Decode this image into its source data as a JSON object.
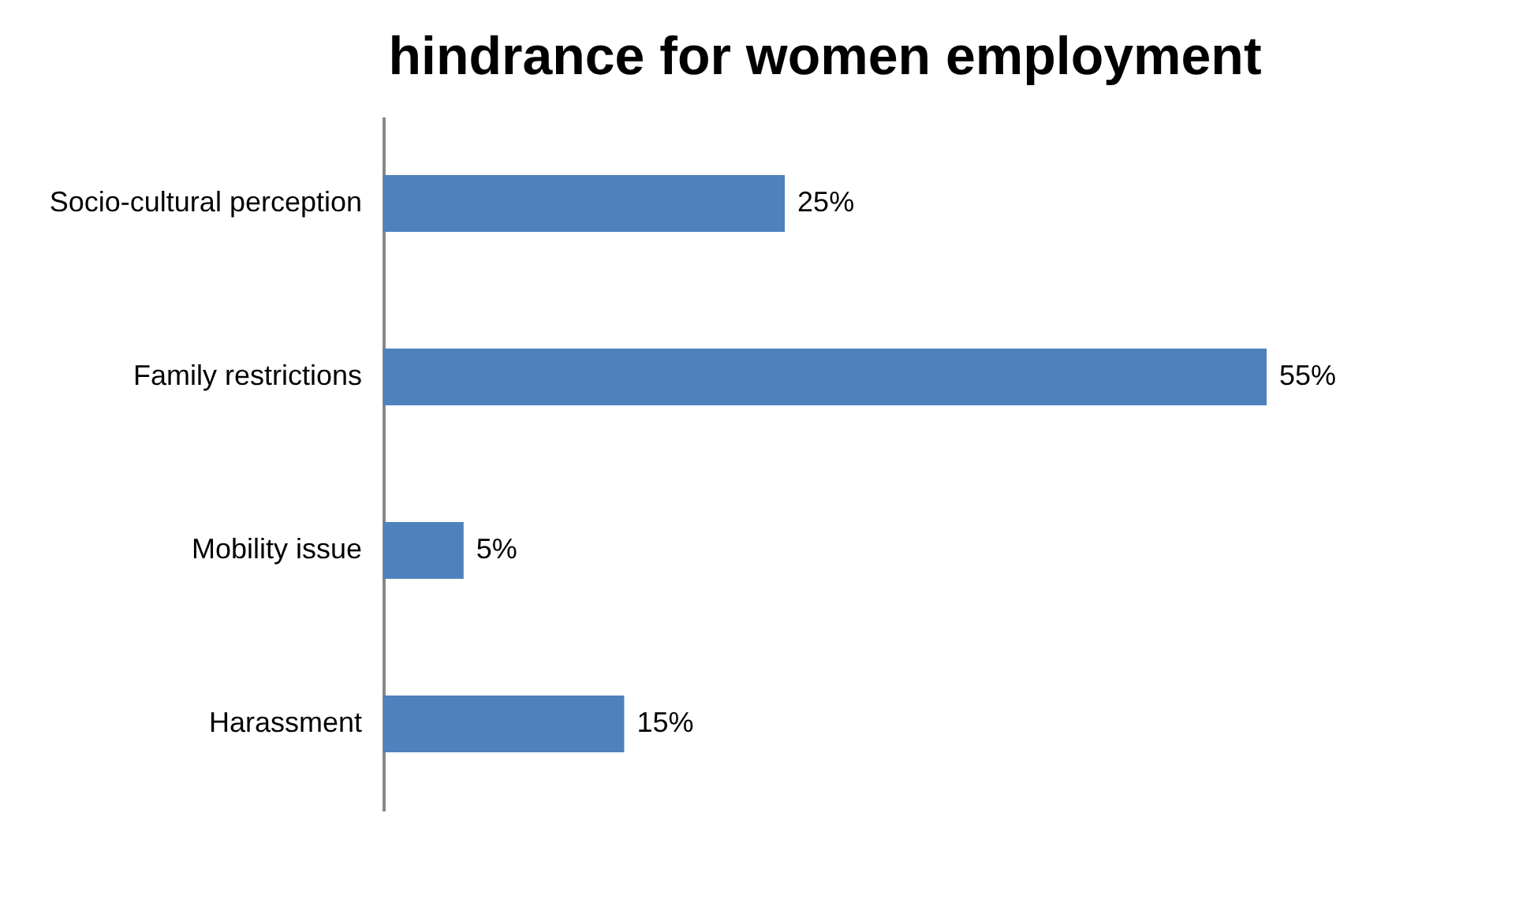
{
  "chart_data": {
    "type": "bar",
    "orientation": "horizontal",
    "title": "hindrance for women employment",
    "categories": [
      "Socio-cultural perception",
      "Family restrictions",
      "Mobility issue",
      "Harassment"
    ],
    "values": [
      25,
      55,
      5,
      15
    ],
    "value_labels": [
      "25%",
      "55%",
      "5%",
      "15%"
    ],
    "color": "#4f81bd"
  }
}
